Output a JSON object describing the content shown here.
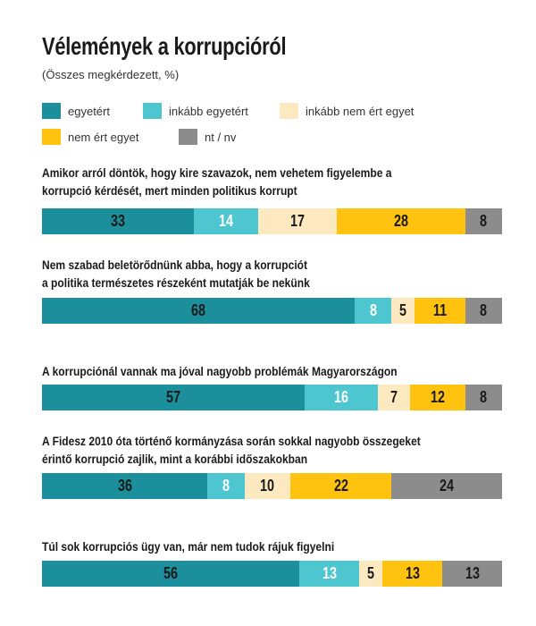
{
  "title": "Vélemények a korrupcióról",
  "subtitle": "(Összes megkérdezett, %)",
  "legend": [
    {
      "label": "egyetért",
      "color": "#1b8f9b"
    },
    {
      "label": "inkább egyetért",
      "color": "#4ec6cf"
    },
    {
      "label": "inkább nem ért egyet",
      "color": "#fde9bf"
    },
    {
      "label": "nem ért egyet",
      "color": "#ffc20e"
    },
    {
      "label": "nt / nv",
      "color": "#8c8c8c"
    }
  ],
  "chart_data": {
    "type": "bar",
    "orientation": "horizontal",
    "stacked": true,
    "title": "Vélemények a korrupcióról",
    "subtitle": "(Összes megkérdezett, %)",
    "legend_position": "top",
    "grid": false,
    "categories": [
      [
        "Amikor arról döntök, hogy kire szavazok, nem vehetem figyelembe a",
        "korrupció kérdését, mert minden politikus korrupt"
      ],
      [
        "Nem szabad beletörődnünk abba, hogy a korrupciót",
        "a politika természetes részeként mutatják be nekünk"
      ],
      [
        "A korrupciónál vannak ma jóval nagyobb problémák Magyarországon"
      ],
      [
        "A Fidesz 2010 óta történő kormányzása során sokkal nagyobb összegeket",
        "érintő korrupció zajlik, mint a korábbi időszakokban"
      ],
      [
        "Túl sok korrupciós ügy van, már nem tudok rájuk figyelni"
      ]
    ],
    "series": [
      {
        "name": "egyetért",
        "color": "#1b8f9b",
        "values": [
          33,
          68,
          57,
          36,
          56
        ]
      },
      {
        "name": "inkább egyetért",
        "color": "#4ec6cf",
        "values": [
          14,
          8,
          16,
          8,
          13
        ]
      },
      {
        "name": "inkább nem ért egyet",
        "color": "#fde9bf",
        "values": [
          17,
          5,
          7,
          10,
          5
        ]
      },
      {
        "name": "nem ért egyet",
        "color": "#ffc20e",
        "values": [
          28,
          11,
          12,
          22,
          13
        ]
      },
      {
        "name": "nt / nv",
        "color": "#8c8c8c",
        "values": [
          8,
          8,
          8,
          24,
          13
        ]
      }
    ]
  }
}
